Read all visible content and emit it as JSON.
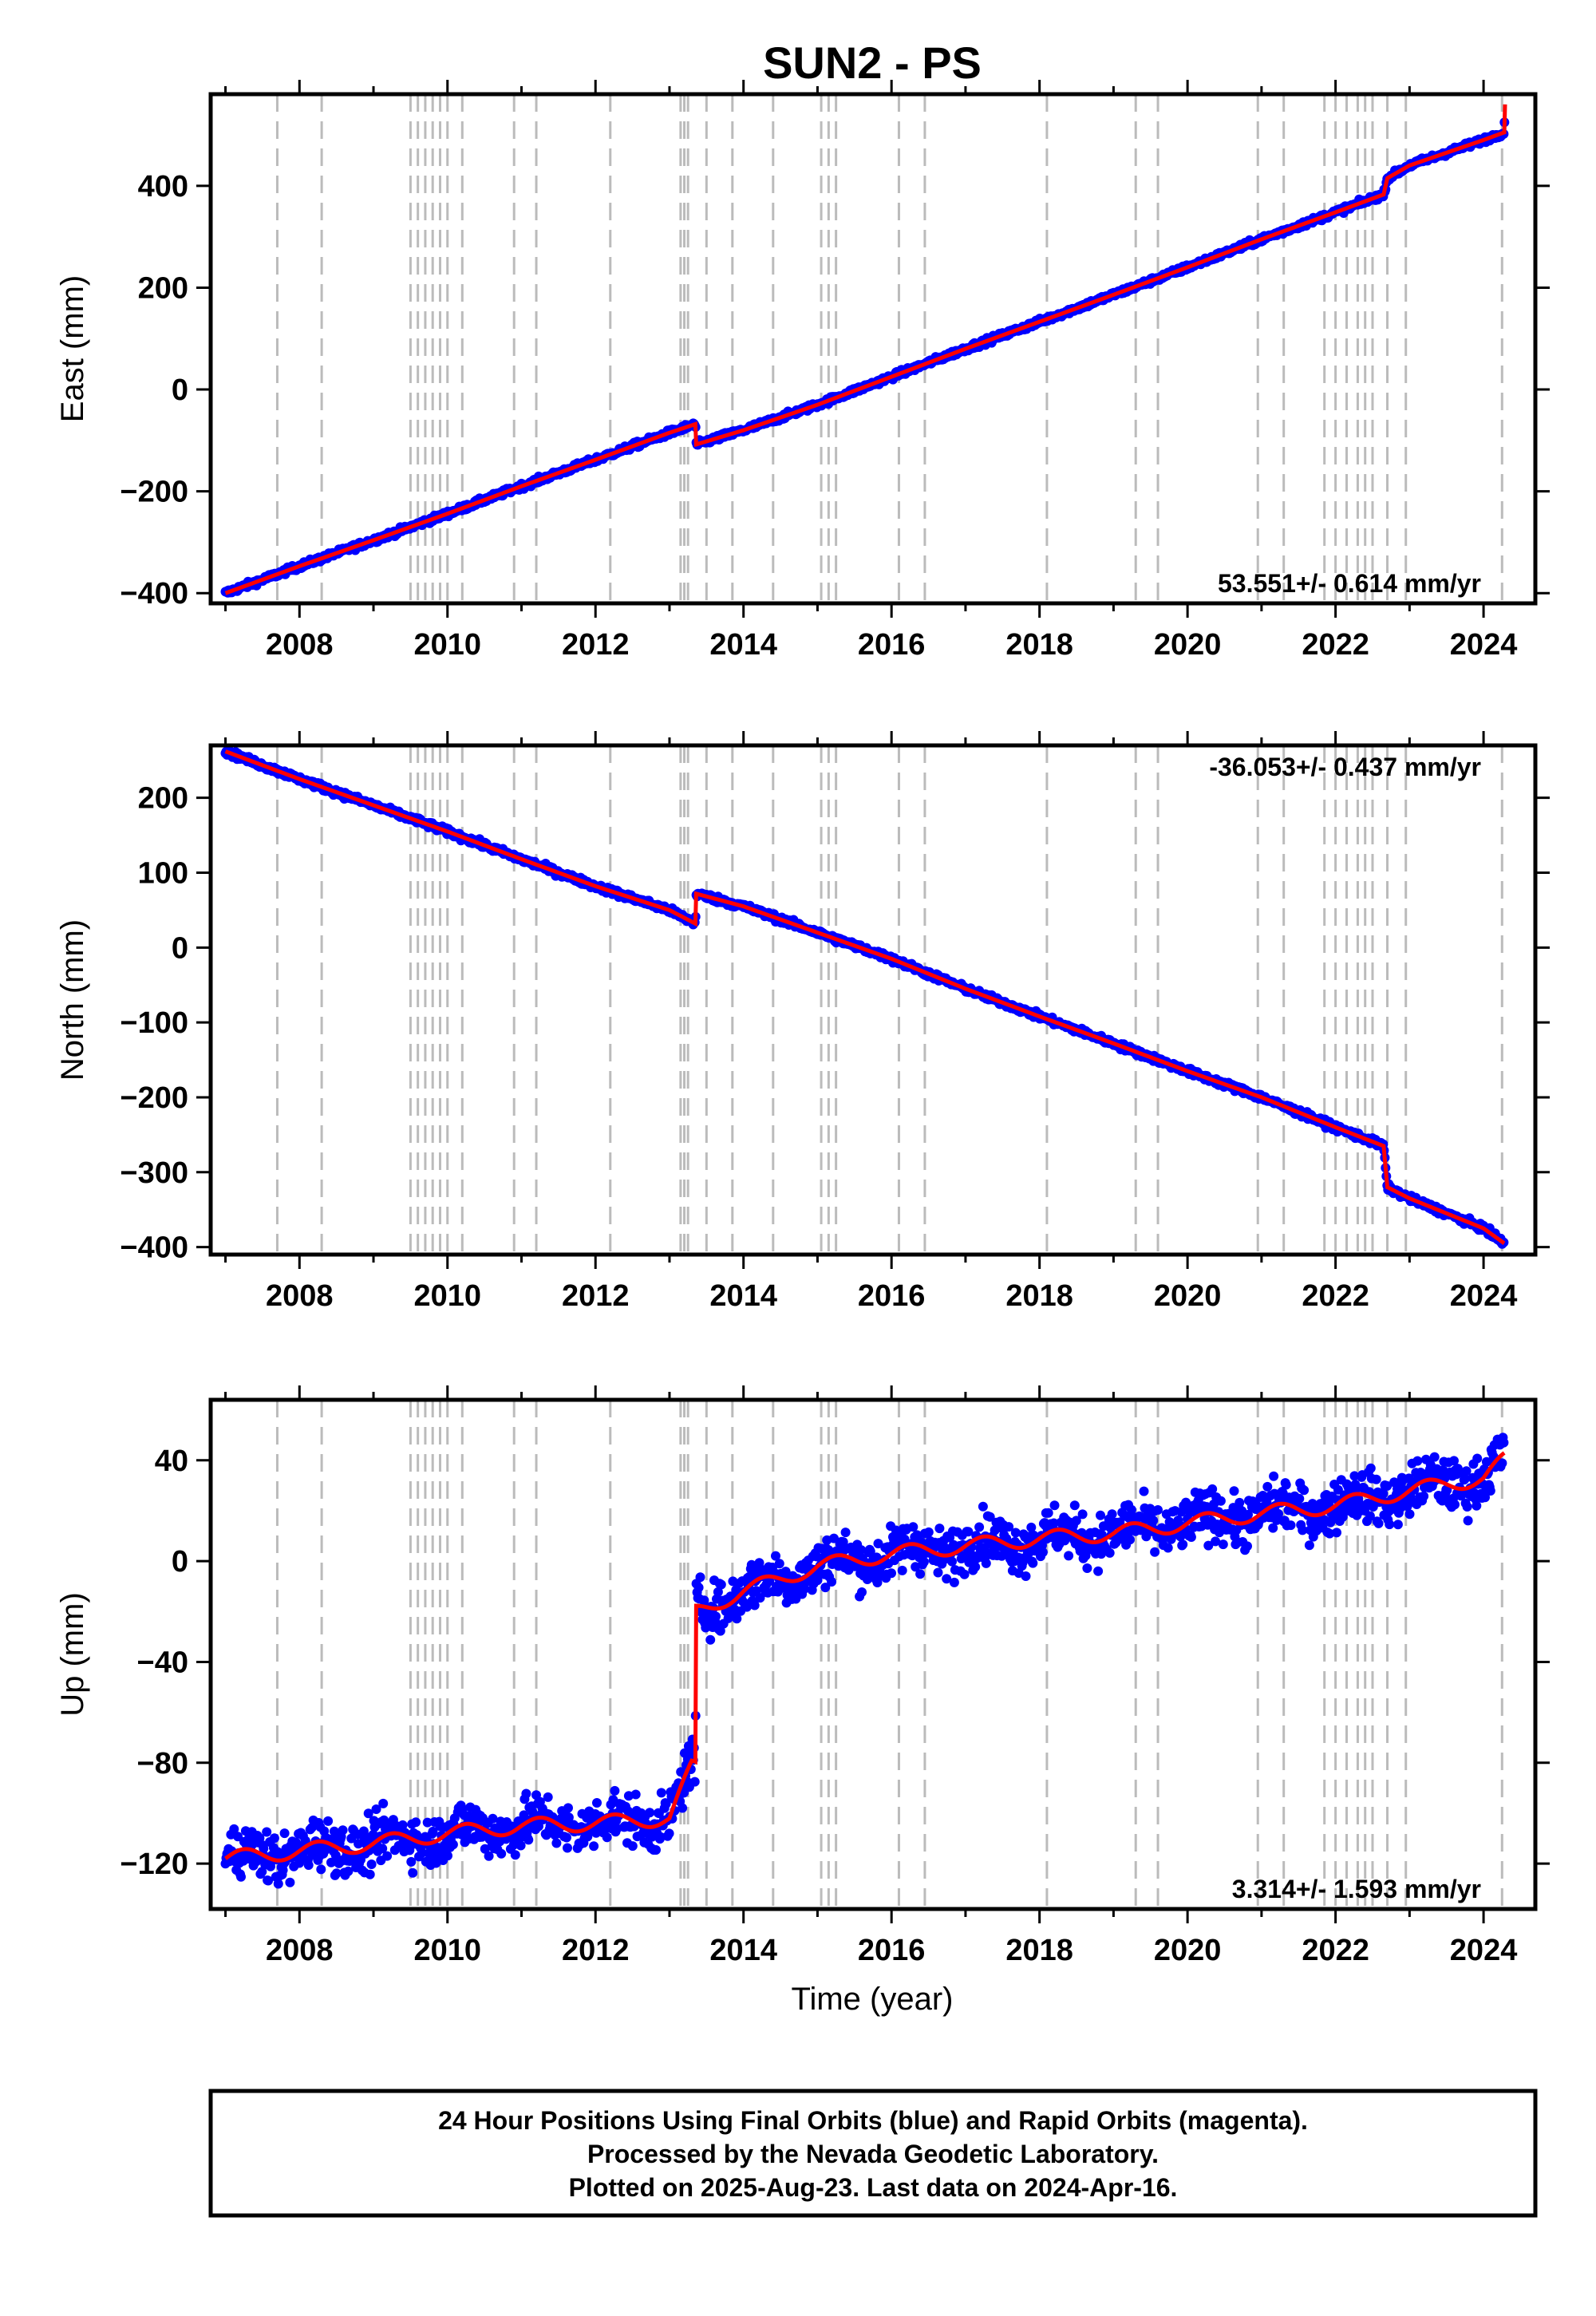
{
  "chart_data": {
    "title": "SUN2 - PS",
    "xlabel": "Time (year)",
    "xlim": [
      2006.8,
      2024.7
    ],
    "x_ticks": [
      2008,
      2010,
      2012,
      2014,
      2016,
      2018,
      2020,
      2022,
      2024
    ],
    "x_tick_labels": [
      "2008",
      "2010",
      "2012",
      "2014",
      "2016",
      "2018",
      "2020",
      "2022",
      "2024"
    ],
    "event_lines": [
      2007.7,
      2008.3,
      2009.5,
      2009.6,
      2009.7,
      2009.8,
      2009.9,
      2010.0,
      2010.2,
      2010.9,
      2011.2,
      2012.2,
      2013.15,
      2013.2,
      2013.25,
      2013.5,
      2013.85,
      2014.4,
      2015.05,
      2015.15,
      2015.25,
      2016.1,
      2016.45,
      2018.1,
      2019.3,
      2019.6,
      2020.95,
      2021.3,
      2021.85,
      2022.0,
      2022.15,
      2022.3,
      2022.4,
      2022.5,
      2022.7,
      2022.95,
      2024.25
    ],
    "colors": {
      "points": "#0000ff",
      "model": "#ff0000",
      "event_lines": "#bbbbbb",
      "axes": "#000000"
    },
    "panels": [
      {
        "type": "scatter",
        "ylabel": "East (mm)",
        "ylim": [
          -420,
          580
        ],
        "y_ticks": [
          -400,
          -200,
          0,
          200,
          400
        ],
        "y_tick_labels": [
          "−400",
          "−200",
          "0",
          "200",
          "400"
        ],
        "rate_text": "53.551+/- 0.614 mm/yr",
        "rate_position": "bottom-right",
        "noise": 4,
        "series": [
          {
            "name": "",
            "x": [
              2007.0,
              2008.0,
              2009.0,
              2010.0,
              2011.0,
              2012.0,
              2013.0,
              2013.35,
              2013.36,
              2014.0,
              2015.0,
              2016.0,
              2017.0,
              2018.0,
              2019.0,
              2020.0,
              2021.0,
              2022.0,
              2022.65,
              2022.7,
              2023.0,
              2024.0,
              2024.28,
              2024.29
            ],
            "y": [
              -400,
              -347,
              -296,
              -244,
              -190,
              -138,
              -85,
              -68,
              -108,
              -80,
              -30,
              25,
              80,
              133,
              186,
              240,
              295,
              348,
              383,
              415,
              440,
              490,
              505,
              560
            ]
          }
        ]
      },
      {
        "type": "scatter",
        "ylabel": "North (mm)",
        "ylim": [
          -410,
          270
        ],
        "y_ticks": [
          -400,
          -300,
          -200,
          -100,
          0,
          100,
          200
        ],
        "y_tick_labels": [
          "−400",
          "−300",
          "−200",
          "−100",
          "0",
          "100",
          "200"
        ],
        "rate_text": "-36.053+/- 0.437 mm/yr",
        "rate_position": "top-right",
        "noise": 3,
        "series": [
          {
            "name": "",
            "x": [
              2007.0,
              2008.0,
              2009.0,
              2010.0,
              2011.0,
              2012.0,
              2013.0,
              2013.35,
              2013.36,
              2014.0,
              2015.0,
              2016.0,
              2017.0,
              2018.0,
              2019.0,
              2020.0,
              2021.0,
              2022.0,
              2022.65,
              2022.7,
              2023.0,
              2024.0,
              2024.28
            ],
            "y": [
              262,
              225,
              190,
              155,
              118,
              82,
              50,
              32,
              72,
              55,
              20,
              -15,
              -55,
              -92,
              -128,
              -165,
              -200,
              -240,
              -265,
              -320,
              -335,
              -375,
              -395
            ]
          }
        ]
      },
      {
        "type": "scatter",
        "ylabel": "Up (mm)",
        "ylim": [
          -138,
          64
        ],
        "y_ticks": [
          -120,
          -80,
          -40,
          0,
          40
        ],
        "y_tick_labels": [
          "−120",
          "−80",
          "−40",
          "0",
          "40"
        ],
        "rate_text": "3.314+/- 1.593 mm/yr",
        "rate_position": "bottom-right",
        "noise": 7,
        "series": [
          {
            "name": "",
            "x": [
              2007.0,
              2008.0,
              2009.0,
              2010.0,
              2011.0,
              2012.0,
              2013.0,
              2013.3,
              2013.35,
              2013.36,
              2014.0,
              2015.0,
              2016.0,
              2017.0,
              2018.0,
              2019.0,
              2020.0,
              2021.0,
              2022.0,
              2023.0,
              2024.0,
              2024.28
            ],
            "y": [
              -118,
              -115,
              -112,
              -108,
              -105,
              -104,
              -102,
              -82,
              -82,
              -20,
              -12,
              -2,
              3,
              6,
              9,
              11,
              15,
              19,
              22,
              28,
              33,
              40
            ]
          }
        ]
      }
    ]
  },
  "footer": {
    "line1": "24 Hour Positions Using Final Orbits (blue) and Rapid Orbits (magenta).",
    "line2": "Processed by the Nevada Geodetic Laboratory.",
    "line3": "Plotted on 2025-Aug-23. Last data on 2024-Apr-16."
  }
}
